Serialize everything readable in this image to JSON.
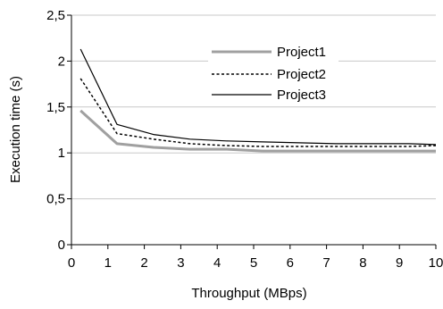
{
  "chart_data": {
    "type": "line",
    "title": "",
    "xlabel": "Throughput (MBps)",
    "ylabel": "Execution time (s)",
    "xlim": [
      0,
      10
    ],
    "ylim": [
      0,
      2.5
    ],
    "x_ticks": [
      0,
      1,
      2,
      3,
      4,
      5,
      6,
      7,
      8,
      9,
      10
    ],
    "y_ticks": [
      0,
      0.5,
      1,
      1.5,
      2,
      2.5
    ],
    "x_tick_labels": [
      "0",
      "1",
      "2",
      "3",
      "4",
      "5",
      "6",
      "7",
      "8",
      "9",
      "10"
    ],
    "y_tick_labels": [
      "0",
      "0,5",
      "1",
      "1,5",
      "2",
      "2,5"
    ],
    "grid": "horizontal",
    "legend": "top-right",
    "x": [
      0.25,
      1.25,
      2.25,
      3.25,
      4.25,
      5.25,
      6.25,
      7.25,
      8.25,
      9.25,
      10
    ],
    "series": [
      {
        "name": "Project1",
        "color": "#a0a0a0",
        "dash": "solid",
        "width": 3,
        "values": [
          1.46,
          1.1,
          1.06,
          1.04,
          1.04,
          1.02,
          1.02,
          1.02,
          1.02,
          1.02,
          1.02
        ]
      },
      {
        "name": "Project2",
        "color": "#000000",
        "dash": "dotted",
        "width": 1.5,
        "values": [
          1.81,
          1.21,
          1.15,
          1.1,
          1.08,
          1.07,
          1.07,
          1.07,
          1.07,
          1.07,
          1.08
        ]
      },
      {
        "name": "Project3",
        "color": "#000000",
        "dash": "solid",
        "width": 1.2,
        "values": [
          2.13,
          1.31,
          1.2,
          1.15,
          1.13,
          1.12,
          1.11,
          1.1,
          1.1,
          1.1,
          1.09
        ]
      }
    ]
  }
}
